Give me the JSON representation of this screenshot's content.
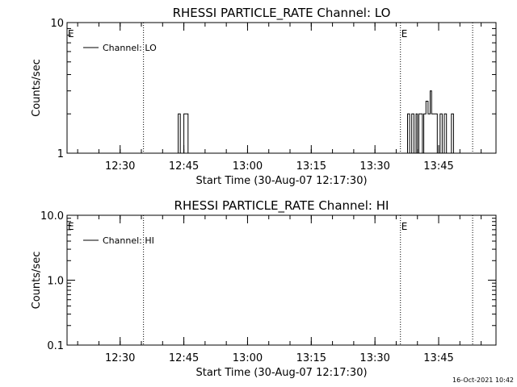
{
  "chart_data": [
    {
      "type": "line",
      "title": "RHESSI PARTICLE_RATE Channel: LO",
      "xlabel": "Start Time (30-Aug-07 12:17:30)",
      "ylabel": "Counts/sec",
      "y_scale": "log",
      "ylim": [
        1,
        10
      ],
      "y_ticks": [
        1,
        10
      ],
      "y_tick_labels": [
        "1",
        "10"
      ],
      "xlim": [
        "12:17:30",
        "13:58:30"
      ],
      "x_ticks": [
        "12:30",
        "12:45",
        "13:00",
        "13:15",
        "13:30",
        "13:45"
      ],
      "legend": {
        "position": "top-left",
        "entries": [
          "Channel: LO"
        ]
      },
      "grid": false,
      "events": [
        {
          "label": "E",
          "start": "12:35:30",
          "end": "13:36:00"
        },
        {
          "label": "E",
          "start": "13:36:00",
          "end": "13:53:00"
        }
      ],
      "series": [
        {
          "name": "Channel: LO",
          "points": [
            [
              "12:43:40",
              1
            ],
            [
              "12:43:40",
              2
            ],
            [
              "12:44:10",
              2
            ],
            [
              "12:44:10",
              1
            ],
            [
              "12:45:00",
              1
            ],
            [
              "12:45:00",
              2
            ],
            [
              "12:46:00",
              2
            ],
            [
              "12:46:00",
              1
            ],
            [
              "13:37:40",
              1
            ],
            [
              "13:37:40",
              2
            ],
            [
              "13:38:10",
              2
            ],
            [
              "13:38:10",
              1
            ],
            [
              "13:38:40",
              1
            ],
            [
              "13:38:40",
              2
            ],
            [
              "13:39:10",
              2
            ],
            [
              "13:39:10",
              1
            ],
            [
              "13:39:40",
              1
            ],
            [
              "13:39:40",
              2
            ],
            [
              "13:40:00",
              2
            ],
            [
              "13:40:00",
              1
            ],
            [
              "13:40:20",
              1
            ],
            [
              "13:40:20",
              2
            ],
            [
              "13:41:10",
              2
            ],
            [
              "13:41:10",
              1
            ],
            [
              "13:41:30",
              1
            ],
            [
              "13:41:30",
              2
            ],
            [
              "13:42:00",
              2
            ],
            [
              "13:42:00",
              2.5
            ],
            [
              "13:42:30",
              2.5
            ],
            [
              "13:42:30",
              2
            ],
            [
              "13:43:00",
              2
            ],
            [
              "13:43:00",
              3
            ],
            [
              "13:43:20",
              3
            ],
            [
              "13:43:20",
              2
            ],
            [
              "13:44:40",
              2
            ],
            [
              "13:44:40",
              1
            ],
            [
              "13:45:20",
              1
            ],
            [
              "13:45:20",
              2
            ],
            [
              "13:45:50",
              2
            ],
            [
              "13:45:50",
              1
            ],
            [
              "13:46:20",
              1
            ],
            [
              "13:46:20",
              2
            ],
            [
              "13:46:50",
              2
            ],
            [
              "13:46:50",
              1
            ],
            [
              "13:48:00",
              1
            ],
            [
              "13:48:00",
              2
            ],
            [
              "13:48:30",
              2
            ],
            [
              "13:48:30",
              1
            ]
          ]
        }
      ]
    },
    {
      "type": "line",
      "title": "RHESSI PARTICLE_RATE Channel: HI",
      "xlabel": "Start Time (30-Aug-07 12:17:30)",
      "ylabel": "Counts/sec",
      "y_scale": "log",
      "ylim": [
        0.1,
        10
      ],
      "y_ticks": [
        0.1,
        1,
        10
      ],
      "y_tick_labels": [
        "0.1",
        "1.0",
        "10.0"
      ],
      "xlim": [
        "12:17:30",
        "13:58:30"
      ],
      "x_ticks": [
        "12:30",
        "12:45",
        "13:00",
        "13:15",
        "13:30",
        "13:45"
      ],
      "legend": {
        "position": "top-left",
        "entries": [
          "Channel: HI"
        ]
      },
      "grid": false,
      "events": [
        {
          "label": "E",
          "start": "12:35:30",
          "end": "13:36:00"
        },
        {
          "label": "E",
          "start": "13:36:00",
          "end": "13:53:00"
        }
      ],
      "series": [
        {
          "name": "Channel: HI",
          "points": []
        }
      ]
    }
  ],
  "footer": {
    "timestamp": "16-Oct-2021 10:42"
  }
}
